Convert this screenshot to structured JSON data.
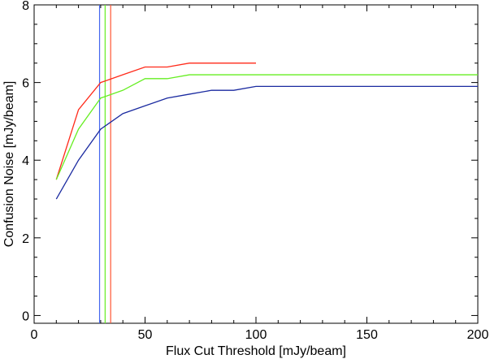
{
  "chart_data": {
    "type": "line",
    "title": "",
    "xlabel": "Flux Cut Threshold [mJy/beam]",
    "ylabel": "Confusion Noise [mJy/beam]",
    "xlim": [
      0,
      200
    ],
    "ylim": [
      -0.2,
      8.0
    ],
    "x_ticks": [
      0,
      50,
      100,
      150,
      200
    ],
    "y_ticks": [
      0,
      2,
      4,
      6,
      8
    ],
    "grid": false,
    "series": [
      {
        "color": "#ff2a1a",
        "x": [
          10,
          20,
          30,
          40,
          50,
          60,
          70,
          80,
          90,
          100
        ],
        "y": [
          3.5,
          5.3,
          6.0,
          6.2,
          6.4,
          6.4,
          6.5,
          6.5,
          6.5,
          6.5
        ]
      },
      {
        "color": "#66ee22",
        "x": [
          10,
          20,
          30,
          40,
          50,
          60,
          70,
          80,
          90,
          100,
          125,
          150,
          175,
          200
        ],
        "y": [
          3.5,
          4.8,
          5.6,
          5.8,
          6.1,
          6.1,
          6.2,
          6.2,
          6.2,
          6.2,
          6.2,
          6.2,
          6.2,
          6.2
        ]
      },
      {
        "color": "#1a2aa0",
        "x": [
          10,
          20,
          30,
          40,
          50,
          60,
          70,
          80,
          90,
          100,
          125,
          150,
          175,
          200
        ],
        "y": [
          3.0,
          4.0,
          4.8,
          5.2,
          5.4,
          5.6,
          5.7,
          5.8,
          5.8,
          5.9,
          5.9,
          5.9,
          5.9,
          5.9
        ]
      }
    ],
    "vertical_lines": [
      {
        "color": "#4466ee",
        "x": 29.5
      },
      {
        "color": "#66ee22",
        "x": 32.0
      },
      {
        "color": "#ff5533",
        "x": 34.5
      }
    ]
  }
}
